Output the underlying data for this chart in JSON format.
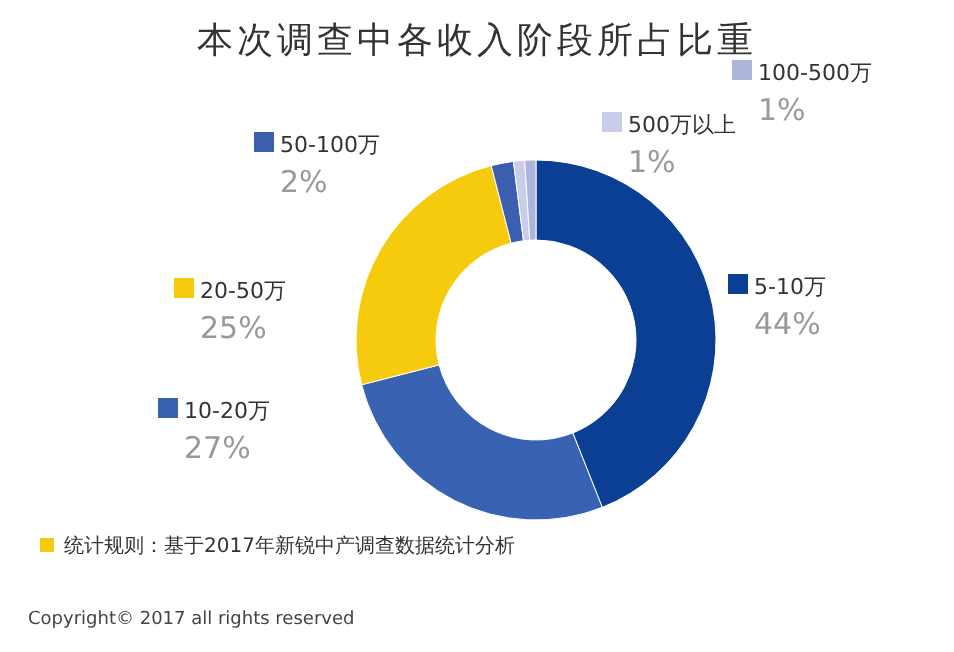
{
  "chart_data": {
    "type": "donut",
    "title": "本次调查中各收入阶段所占比重",
    "categories": [
      "5-10万",
      "10-20万",
      "20-50万",
      "50-100万",
      "500万以上",
      "100-500万"
    ],
    "values": [
      44,
      27,
      25,
      2,
      1,
      1
    ],
    "legend": "left",
    "value_labels": [
      "44%",
      "27%",
      "25%",
      "2%",
      "1%",
      "1%"
    ],
    "colors": [
      "#0b3f94",
      "#3a62b2",
      "#f7cb0d",
      "#3b5fae",
      "#c9cdea",
      "#aeb5dd"
    ],
    "annotations": [
      "统计规则：基于2017年新锐中产调查数据统计分析",
      "Copyright© 2017 all rights reserved"
    ]
  }
}
